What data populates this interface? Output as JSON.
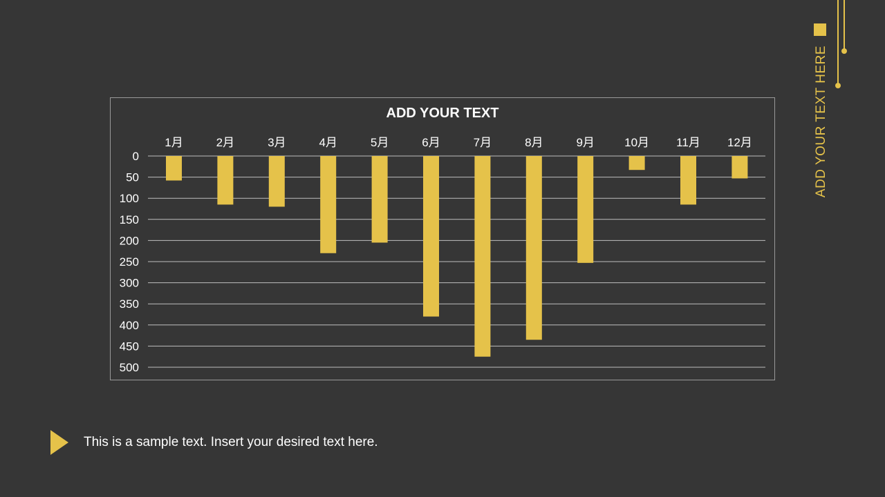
{
  "side_label": "ADD YOUR TEXT HERE",
  "footer_text": "This is a sample text. Insert your desired text here.",
  "colors": {
    "background": "#363636",
    "accent": "#e5c24a",
    "grid": "#bfbfbf",
    "text": "#ffffff"
  },
  "chart_data": {
    "type": "bar",
    "title": "ADD YOUR TEXT",
    "categories": [
      "1月",
      "2月",
      "3月",
      "4月",
      "5月",
      "6月",
      "7月",
      "8月",
      "9月",
      "10月",
      "11月",
      "12月"
    ],
    "values": [
      58,
      115,
      120,
      230,
      205,
      380,
      475,
      435,
      253,
      33,
      115,
      53
    ],
    "yticks": [
      0,
      50,
      100,
      150,
      200,
      250,
      300,
      350,
      400,
      450,
      500
    ],
    "ylim": [
      0,
      500
    ],
    "y_axis_reversed": true,
    "grid": true,
    "legend": "none",
    "xlabel": "",
    "ylabel": ""
  }
}
